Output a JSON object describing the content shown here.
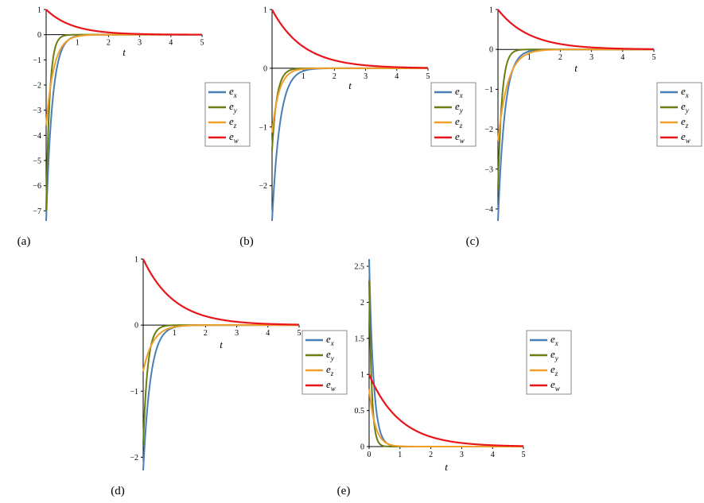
{
  "colors": {
    "e_x": "#4a7fb5",
    "e_y": "#6b7d12",
    "e_z": "#f0a02a",
    "e_w": "#e8161a"
  },
  "legend": [
    {
      "base": "e",
      "sub": "x",
      "color": "#4a7fb5"
    },
    {
      "base": "e",
      "sub": "y",
      "color": "#6b7d12"
    },
    {
      "base": "e",
      "sub": "z",
      "color": "#f0a02a"
    },
    {
      "base": "e",
      "sub": "w",
      "color": "#e8161a"
    }
  ],
  "chart_data": [
    {
      "panel_label": "(a)",
      "type": "line",
      "xlabel": "t",
      "xlim": [
        0,
        5
      ],
      "ylim": [
        -7.4,
        1.0
      ],
      "xticks": [
        1,
        2,
        3,
        4,
        5
      ],
      "yticks": [
        1,
        0,
        -1,
        -2,
        -3,
        -4,
        -5,
        -6,
        -7
      ],
      "series": [
        {
          "name": "e_x",
          "initial": -7.4,
          "decay_rate": 5.0
        },
        {
          "name": "e_y",
          "initial": -7.0,
          "decay_rate": 9.0
        },
        {
          "name": "e_z",
          "initial": -3.6,
          "decay_rate": 4.0
        },
        {
          "name": "e_w",
          "initial": 1.0,
          "decay_rate": 1.2
        }
      ]
    },
    {
      "panel_label": "(b)",
      "type": "line",
      "xlabel": "t",
      "xlim": [
        0,
        5
      ],
      "ylim": [
        -2.6,
        1.0
      ],
      "xticks": [
        1,
        2,
        3,
        4,
        5
      ],
      "yticks": [
        1,
        0,
        -1,
        -2
      ],
      "series": [
        {
          "name": "e_x",
          "initial": -2.6,
          "decay_rate": 4.0
        },
        {
          "name": "e_y",
          "initial": -1.4,
          "decay_rate": 6.5
        },
        {
          "name": "e_z",
          "initial": -1.1,
          "decay_rate": 4.5
        },
        {
          "name": "e_w",
          "initial": 1.0,
          "decay_rate": 1.0
        }
      ]
    },
    {
      "panel_label": "(c)",
      "type": "line",
      "xlabel": "t",
      "xlim": [
        0,
        5
      ],
      "ylim": [
        -4.3,
        1.0
      ],
      "xticks": [
        1,
        2,
        3,
        4,
        5
      ],
      "yticks": [
        1,
        0,
        -1,
        -2,
        -3,
        -4
      ],
      "series": [
        {
          "name": "e_x",
          "initial": -4.3,
          "decay_rate": 4.5
        },
        {
          "name": "e_y",
          "initial": -3.5,
          "decay_rate": 8.0
        },
        {
          "name": "e_z",
          "initial": -2.3,
          "decay_rate": 3.2
        },
        {
          "name": "e_w",
          "initial": 1.0,
          "decay_rate": 1.0
        }
      ]
    },
    {
      "panel_label": "(d)",
      "type": "line",
      "xlabel": "t",
      "xlim": [
        0,
        5
      ],
      "ylim": [
        -2.2,
        1.0
      ],
      "xticks": [
        1,
        2,
        3,
        4,
        5
      ],
      "yticks": [
        1,
        0,
        -1,
        -2
      ],
      "series": [
        {
          "name": "e_x",
          "initial": -2.2,
          "decay_rate": 4.2
        },
        {
          "name": "e_y",
          "initial": -1.8,
          "decay_rate": 7.0
        },
        {
          "name": "e_z",
          "initial": -0.7,
          "decay_rate": 3.2
        },
        {
          "name": "e_w",
          "initial": 1.0,
          "decay_rate": 1.0
        }
      ]
    },
    {
      "panel_label": "(e)",
      "type": "line",
      "xlabel": "t",
      "xlim": [
        0,
        5
      ],
      "ylim": [
        0,
        2.6
      ],
      "xticks": [
        0,
        1,
        2,
        3,
        4,
        5
      ],
      "yticks": [
        2.5,
        2,
        1.5,
        1,
        0.5,
        0
      ],
      "series": [
        {
          "name": "e_x",
          "initial": 2.6,
          "decay_rate": 7.0
        },
        {
          "name": "e_y",
          "initial": 2.3,
          "decay_rate": 12.0
        },
        {
          "name": "e_z",
          "initial": 0.8,
          "decay_rate": 5.0
        },
        {
          "name": "e_w",
          "initial": 1.0,
          "decay_rate": 1.0
        }
      ]
    }
  ]
}
